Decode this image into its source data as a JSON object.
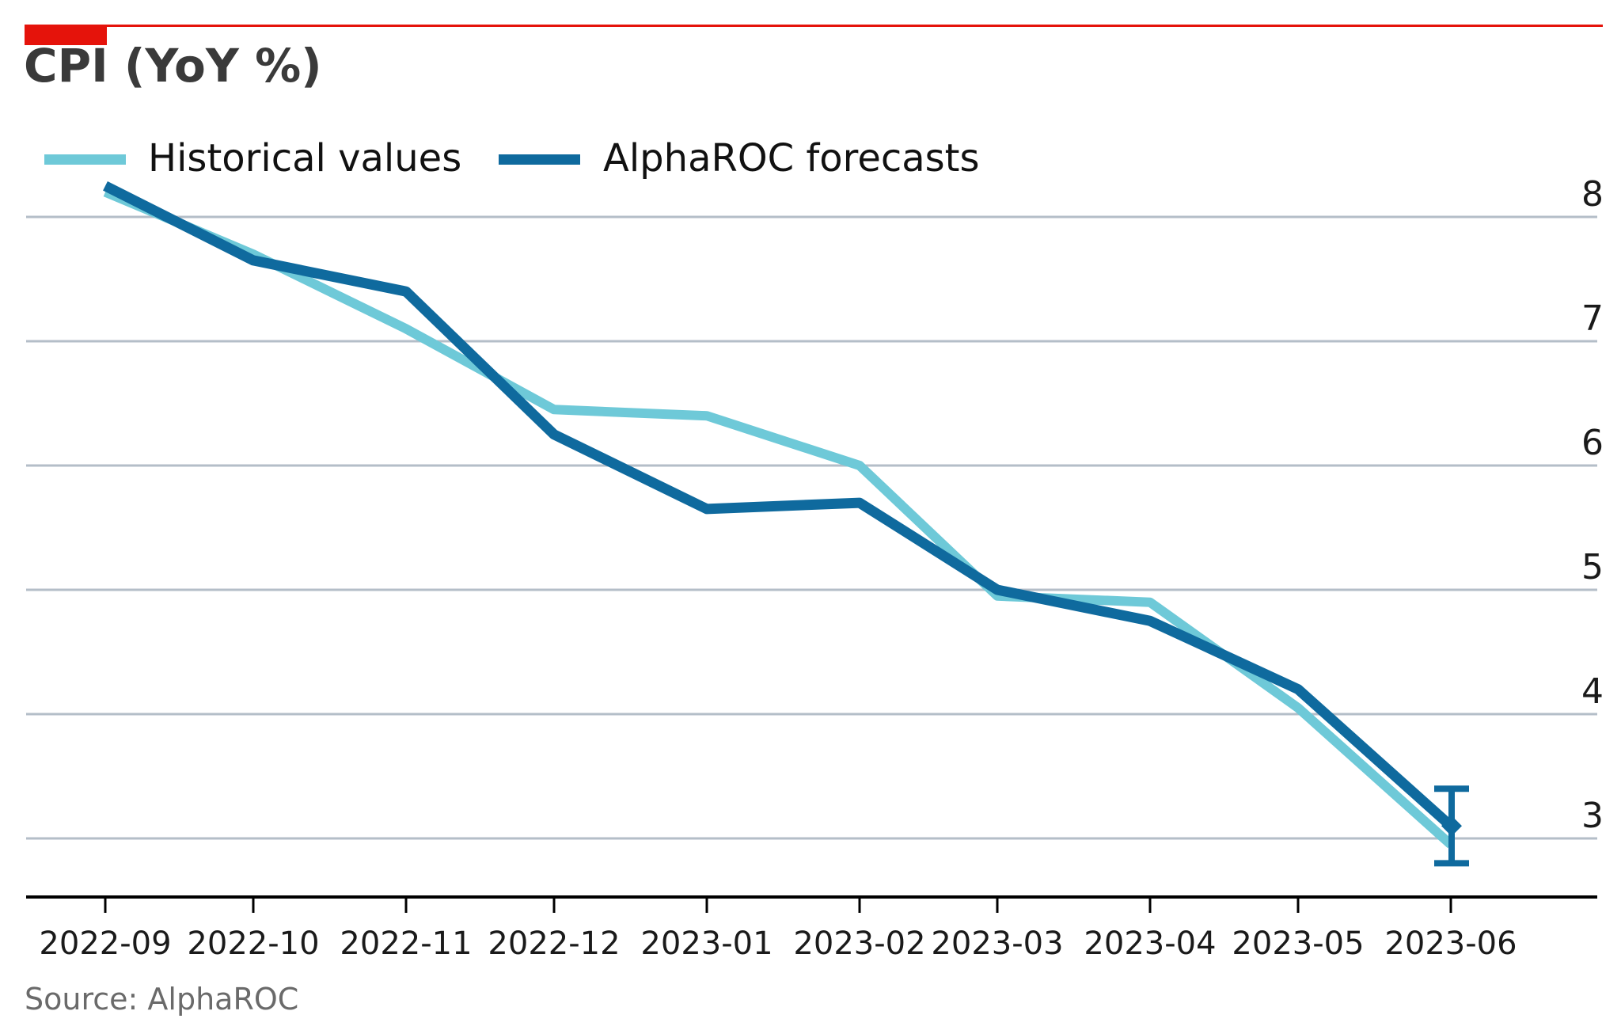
{
  "header": {
    "title": "CPI (YoY %)"
  },
  "colors": {
    "accent_red": "#e5130b",
    "historical": "#6ec9d8",
    "forecast": "#0f6a9e",
    "gridline": "#b4bec8",
    "axis": "#000000",
    "tick_label": "#1a1a1a",
    "title_text": "#3a3a3a",
    "source_text": "#6a6a6a"
  },
  "legend": {
    "items": [
      {
        "label": "Historical values",
        "color": "#6ec9d8"
      },
      {
        "label": "AlphaROC forecasts",
        "color": "#0f6a9e"
      }
    ]
  },
  "chart_data": {
    "type": "line",
    "title": "CPI (YoY %)",
    "categories": [
      "2022-09",
      "2022-10",
      "2022-11",
      "2022-12",
      "2023-01",
      "2023-02",
      "2023-03",
      "2023-04",
      "2023-05",
      "2023-06"
    ],
    "series": [
      {
        "name": "Historical values",
        "color": "#6ec9d8",
        "values": [
          8.2,
          7.7,
          7.1,
          6.45,
          6.4,
          6.0,
          4.95,
          4.9,
          4.05,
          2.95
        ]
      },
      {
        "name": "AlphaROC forecasts",
        "color": "#0f6a9e",
        "values": [
          8.25,
          7.65,
          7.4,
          6.25,
          5.65,
          5.7,
          5.0,
          4.75,
          4.2,
          3.1
        ],
        "marker_last": "diamond",
        "error_bar_last": {
          "low": 2.8,
          "high": 3.4
        }
      }
    ],
    "yticks": [
      3,
      4,
      5,
      6,
      7,
      8
    ],
    "ylim": [
      2.5,
      8.5
    ],
    "grid": "horizontal",
    "legend_position": "top-left"
  },
  "source": {
    "label": "Source: AlphaROC"
  }
}
